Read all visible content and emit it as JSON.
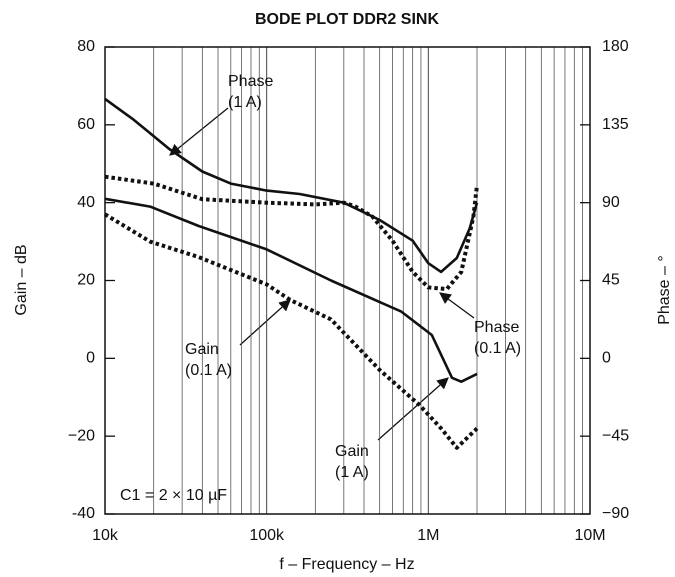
{
  "chart_data": {
    "type": "line",
    "title": "BODE PLOT DDR2 SINK",
    "x_label": "f – Frequency – Hz",
    "y_label": "Gain – dB",
    "y2_label": "Phase – °",
    "log_x": true,
    "grid_x_minor": true,
    "xlim": [
      10000,
      10000000
    ],
    "xticks": [
      {
        "value": 10000,
        "label": "10k"
      },
      {
        "value": 100000,
        "label": "100k"
      },
      {
        "value": 1000000,
        "label": "1M"
      },
      {
        "value": 10000000,
        "label": "10M"
      }
    ],
    "ylim": [
      -40,
      80
    ],
    "yticks": [
      -40,
      {
        "value": -20,
        "label": "−20"
      },
      0,
      20,
      40,
      60,
      80
    ],
    "y2lim": [
      -90,
      180
    ],
    "y2ticks": [
      {
        "value": -90,
        "label": "−90"
      },
      {
        "value": -45,
        "label": "−45"
      },
      0,
      45,
      90,
      135,
      180
    ],
    "series": [
      {
        "name": "Phase (1 A)",
        "color": "#111111",
        "style": "solid",
        "axis": "y2",
        "x": [
          10000,
          15000,
          25000,
          40000,
          60000,
          100000,
          160000,
          300000,
          500000,
          800000,
          1000000,
          1200000,
          1500000,
          1800000,
          2000000
        ],
        "values": [
          150,
          138,
          121,
          108,
          101,
          97,
          95,
          90,
          80,
          68,
          55,
          50,
          58,
          75,
          90
        ]
      },
      {
        "name": "Phase (0.1 A)",
        "color": "#111111",
        "style": "dotted",
        "axis": "y2",
        "x": [
          10000,
          20000,
          40000,
          100000,
          200000,
          300000,
          350000,
          450000,
          600000,
          800000,
          1000000,
          1300000,
          1600000,
          1900000,
          2000000
        ],
        "values": [
          105,
          101,
          92,
          90,
          89,
          90,
          88,
          82,
          68,
          50,
          41,
          40,
          50,
          82,
          100
        ]
      },
      {
        "name": "Gain (1 A)",
        "color": "#111111",
        "style": "solid",
        "x": [
          10000,
          19000,
          38000,
          100000,
          250000,
          680000,
          1050000,
          1400000,
          1600000,
          2000000
        ],
        "values": [
          41,
          39,
          34,
          28,
          20,
          12,
          6,
          -5,
          -6,
          -4
        ]
      },
      {
        "name": "Gain (0.1 A)",
        "color": "#111111",
        "style": "dotted",
        "x": [
          10000,
          19000,
          38000,
          100000,
          140000,
          250000,
          500000,
          880000,
          1200000,
          1500000,
          2000000
        ],
        "values": [
          37,
          30,
          26,
          19,
          15,
          10,
          -3,
          -12,
          -18,
          -23,
          -18
        ]
      }
    ],
    "annotations": [
      {
        "text": [
          "Phase",
          "(1 A)"
        ]
      },
      {
        "text": [
          "Phase",
          "(0.1 A)"
        ]
      },
      {
        "text": [
          "Gain",
          "(0.1 A)"
        ]
      },
      {
        "text": [
          "Gain",
          "(1 A)"
        ]
      },
      {
        "text": [
          "C1 = 2 × 10 µF"
        ]
      }
    ]
  }
}
